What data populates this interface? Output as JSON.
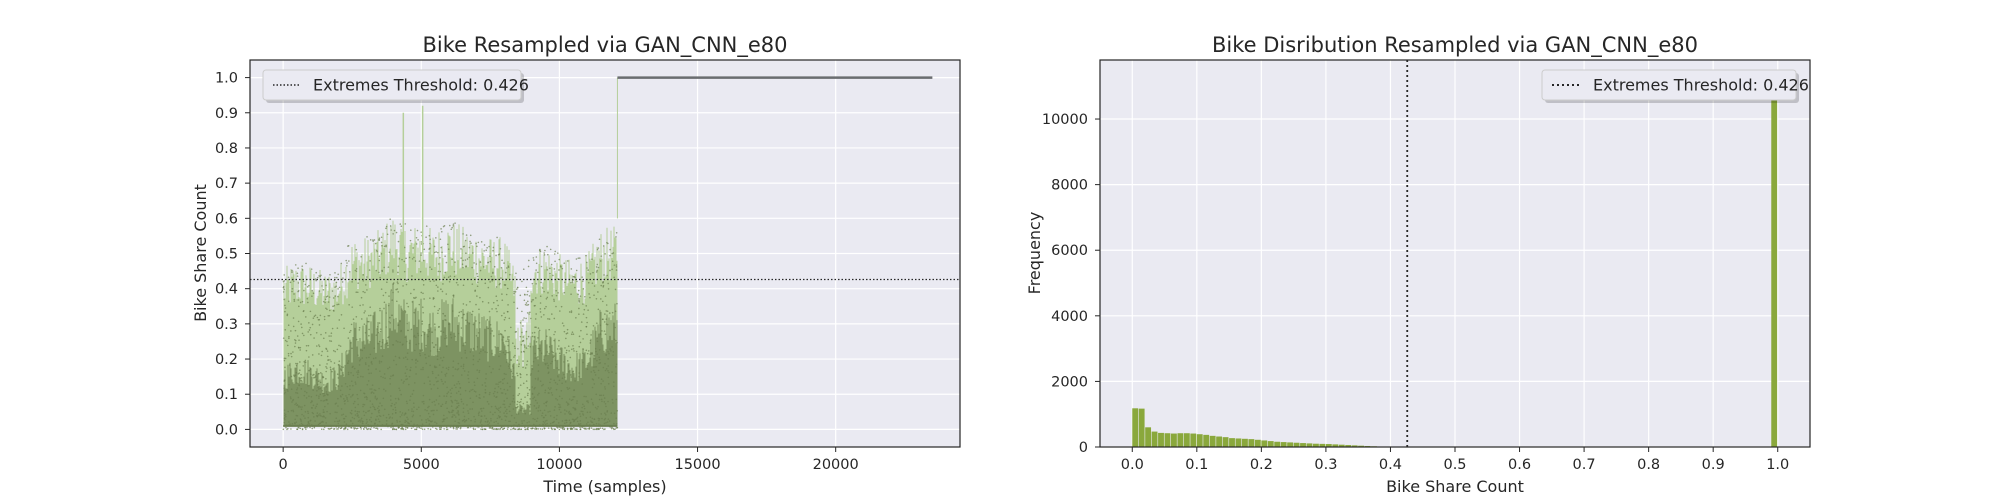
{
  "colors": {
    "figure_bg": "#ffffff",
    "axes_bg": "#eaeaf2",
    "grid": "#ffffff",
    "spine": "#262626",
    "scatter_light": "#b5cf9a",
    "scatter_dark": "#6b7f50",
    "synthetic_line": "#6a6d70",
    "hist_bar": "#8aa83c",
    "threshold": "#262626"
  },
  "chart_data": [
    {
      "type": "scatter",
      "title": "Bike Resampled via GAN_CNN_e80",
      "xlabel": "Time (samples)",
      "ylabel": "Bike Share Count",
      "xlim": [
        -1200,
        24500
      ],
      "ylim": [
        -0.05,
        1.05
      ],
      "xticks": [
        0,
        5000,
        10000,
        15000,
        20000
      ],
      "xtick_labels": [
        "0",
        "5000",
        "10000",
        "15000",
        "20000"
      ],
      "yticks": [
        0.0,
        0.1,
        0.2,
        0.3,
        0.4,
        0.5,
        0.6,
        0.7,
        0.8,
        0.9,
        1.0
      ],
      "ytick_labels": [
        "0.0",
        "0.1",
        "0.2",
        "0.3",
        "0.4",
        "0.5",
        "0.6",
        "0.7",
        "0.8",
        "0.9",
        "1.0"
      ],
      "grid": true,
      "legend_position": "top-left",
      "legend_label": "Extremes Threshold: 0.426",
      "threshold": 0.426,
      "original_range": [
        0,
        12100
      ],
      "original_envelope": {
        "x": [
          0,
          500,
          1000,
          1500,
          2000,
          2500,
          3000,
          3500,
          4000,
          4500,
          5000,
          5500,
          6000,
          6500,
          7000,
          7500,
          8000,
          8500,
          9000,
          9500,
          10000,
          10500,
          11000,
          11500,
          12000
        ],
        "y": [
          0.46,
          0.48,
          0.47,
          0.45,
          0.46,
          0.55,
          0.55,
          0.57,
          0.62,
          0.58,
          0.59,
          0.57,
          0.6,
          0.58,
          0.57,
          0.55,
          0.55,
          0.44,
          0.52,
          0.53,
          0.5,
          0.48,
          0.5,
          0.57,
          0.58
        ]
      },
      "original_spikes": [
        {
          "x": 4350,
          "y": 0.9
        },
        {
          "x": 5050,
          "y": 0.92
        }
      ],
      "synthetic_segment": {
        "x_start": 12100,
        "x_end": 23500,
        "y": 1.0
      }
    },
    {
      "type": "bar",
      "title": "Bike Disribution Resampled via GAN_CNN_e80",
      "xlabel": "Bike Share Count",
      "ylabel": "Frequency",
      "xlim": [
        -0.05,
        1.05
      ],
      "ylim": [
        0,
        11800
      ],
      "xticks": [
        0.0,
        0.1,
        0.2,
        0.3,
        0.4,
        0.5,
        0.6,
        0.7,
        0.8,
        0.9,
        1.0
      ],
      "xtick_labels": [
        "0.0",
        "0.1",
        "0.2",
        "0.3",
        "0.4",
        "0.5",
        "0.6",
        "0.7",
        "0.8",
        "0.9",
        "1.0"
      ],
      "yticks": [
        0,
        2000,
        4000,
        6000,
        8000,
        10000
      ],
      "ytick_labels": [
        "0",
        "2000",
        "4000",
        "6000",
        "8000",
        "10000"
      ],
      "grid": true,
      "legend_position": "top-right",
      "legend_label": "Extremes Threshold: 0.426",
      "threshold": 0.426,
      "bin_width": 0.01,
      "bins_start": [
        0.0,
        0.01,
        0.02,
        0.03,
        0.04,
        0.05,
        0.06,
        0.07,
        0.08,
        0.09,
        0.1,
        0.11,
        0.12,
        0.13,
        0.14,
        0.15,
        0.16,
        0.17,
        0.18,
        0.19,
        0.2,
        0.21,
        0.22,
        0.23,
        0.24,
        0.25,
        0.26,
        0.27,
        0.28,
        0.29,
        0.3,
        0.31,
        0.32,
        0.33,
        0.34,
        0.35,
        0.36,
        0.37,
        0.38,
        0.39,
        0.4,
        0.41,
        0.99
      ],
      "values": [
        1180,
        1170,
        600,
        470,
        430,
        420,
        410,
        420,
        420,
        410,
        390,
        370,
        340,
        320,
        300,
        270,
        260,
        250,
        240,
        220,
        200,
        180,
        160,
        150,
        140,
        130,
        120,
        110,
        100,
        95,
        90,
        80,
        70,
        60,
        50,
        40,
        30,
        22,
        15,
        10,
        6,
        3,
        10950
      ]
    }
  ]
}
